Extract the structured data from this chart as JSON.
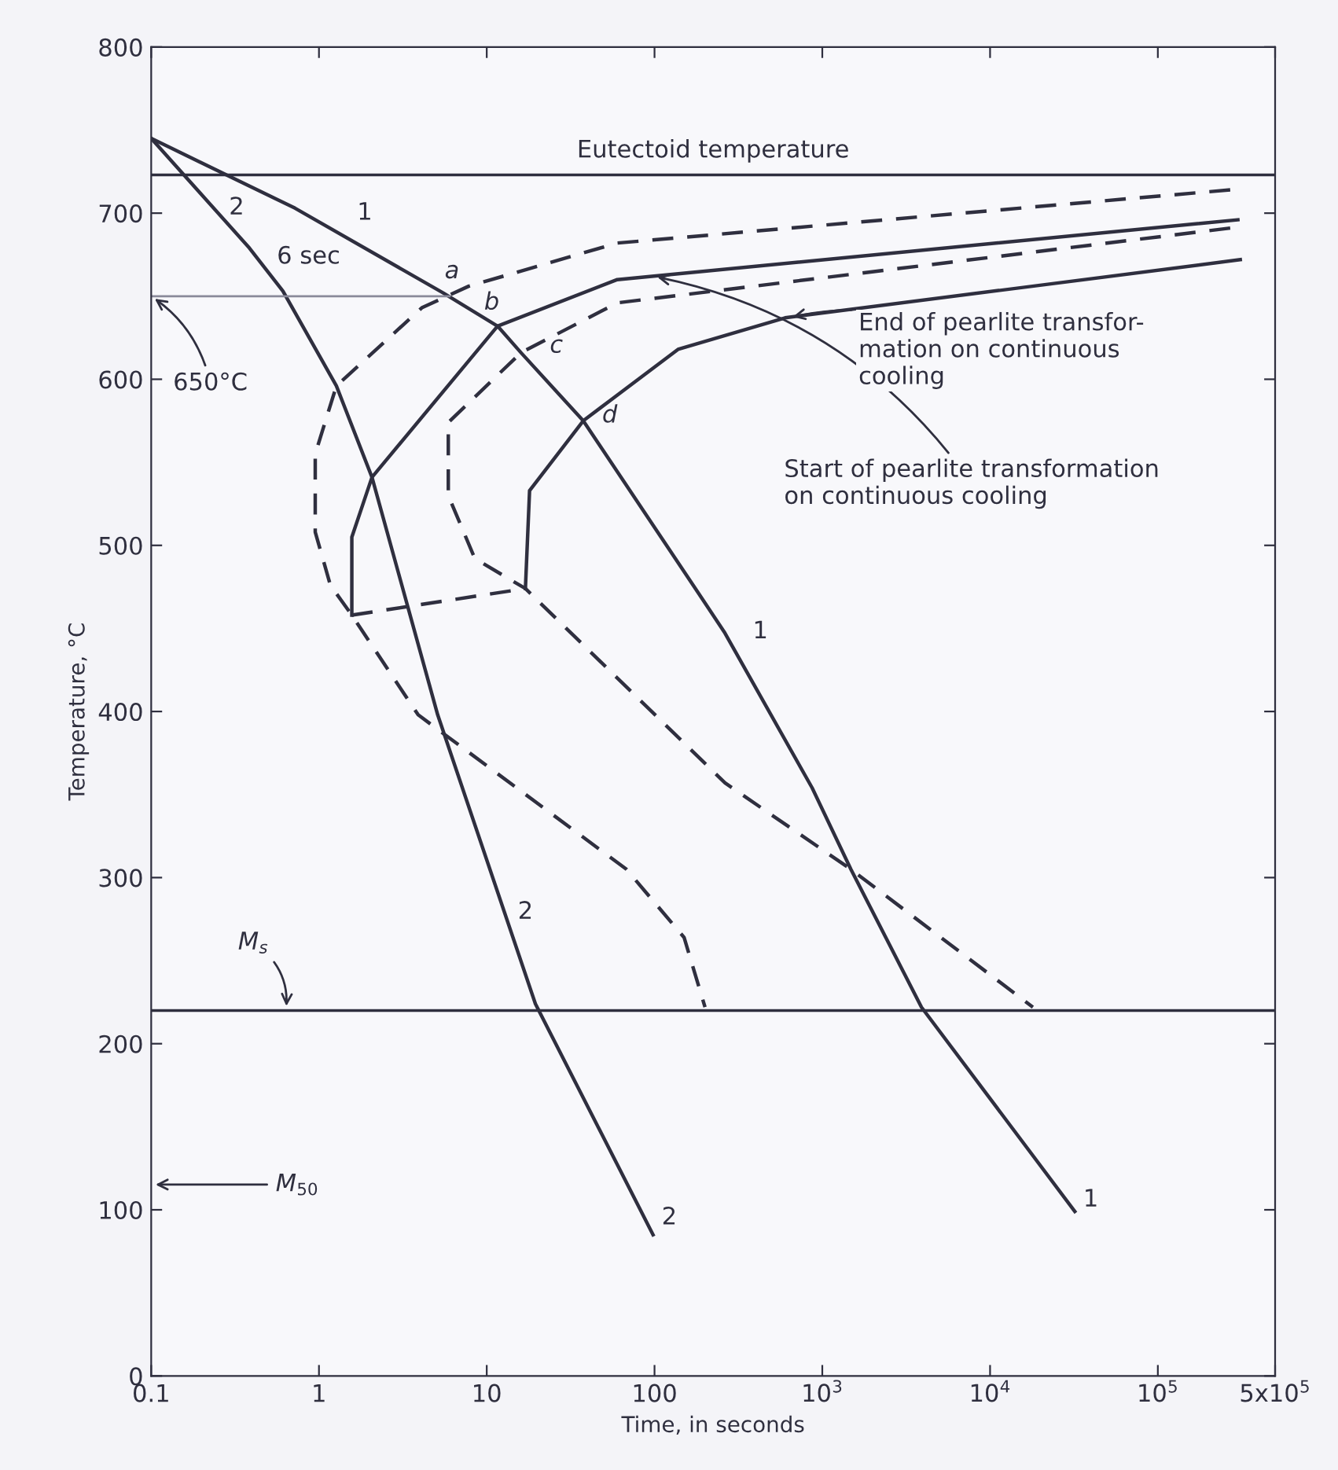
{
  "chart_data": {
    "type": "line",
    "xlabel": "Time, in seconds",
    "ylabel": "Temperature, °C",
    "log": "x",
    "xlim": [
      0.1,
      500000
    ],
    "ylim": [
      0,
      800
    ],
    "xticks": [
      0.1,
      1,
      10,
      100,
      {
        "value": 1000,
        "label": "10$^{3}$"
      },
      {
        "value": 10000,
        "label": "10$^{4}$"
      },
      {
        "value": 100000,
        "label": "10$^{5}$"
      },
      {
        "value": 500000,
        "label": "5x10$^{5}$"
      }
    ],
    "yticks": [
      0,
      100,
      200,
      300,
      400,
      500,
      600,
      700,
      800
    ],
    "grid": false,
    "marker": "none",
    "series": [
      {
        "color": "#2f2f3f",
        "line_style": "solid",
        "x": [
          0.1,
          0.72,
          5.5,
          11.6,
          16,
          37.6,
          170,
          260,
          870,
          1480,
          3900,
          32000
        ],
        "values": [
          745,
          703,
          652,
          632,
          616,
          575,
          476,
          448,
          354,
          305,
          222,
          99
        ]
      },
      {
        "color": "#2f2f3f",
        "line_style": "solid",
        "x": [
          0.1,
          0.385,
          0.61,
          1.27,
          2.07,
          5.1,
          19.5,
          98
        ],
        "values": [
          745,
          679,
          653,
          596,
          541,
          398,
          224,
          85
        ]
      },
      {
        "color": "#2f2f3f",
        "line_style": "dashed",
        "x": [
          270000,
          60,
          7.8,
          4.1,
          1.27,
          0.95,
          0.95,
          1.17,
          1.57,
          3.9,
          68,
          150,
          200
        ],
        "values": [
          714,
          682,
          656,
          643,
          596,
          555,
          508,
          476,
          458,
          398,
          305,
          264,
          222
        ]
      },
      {
        "color": "#2f2f3f",
        "line_style": "solid",
        "x": [
          300000,
          60,
          11.6,
          2.07,
          1.57,
          1.57
        ],
        "values": [
          696,
          660,
          632,
          541,
          505,
          458
        ]
      },
      {
        "color": "#2f2f3f",
        "line_style": "dashed",
        "x": [
          270000,
          60,
          16,
          5.9,
          5.9,
          8.5,
          17,
          263,
          1480,
          18000
        ],
        "values": [
          691,
          646,
          616,
          574,
          530,
          492,
          474,
          357,
          305,
          222
        ]
      },
      {
        "color": "#2f2f3f",
        "line_style": "solid",
        "x": [
          310000,
          600,
          138,
          37.6,
          18,
          17
        ],
        "values": [
          672,
          637,
          618,
          575,
          533,
          474
        ]
      },
      {
        "color": "#2f2f3f",
        "line_style": "dashed",
        "x": [
          1.57,
          17
        ],
        "values": [
          458,
          474
        ]
      },
      {
        "color": "#8a8a9a",
        "line_style": "solid",
        "x": [
          0.1,
          6
        ],
        "values": [
          650,
          650
        ]
      }
    ],
    "ref_lines": [
      {
        "axis": "y",
        "value": 723,
        "label": "Eutectoid temperature",
        "color": "#2f2f3f"
      },
      {
        "axis": "y",
        "value": 220,
        "label": "M$_{s}$",
        "color": "#2f2f3f"
      }
    ],
    "annotations": [
      {
        "text": "650°C",
        "x": 0.1,
        "y": 650
      },
      "6 sec",
      "M$_{50}$",
      {
        "text": "Start of pearlite transformation\non continuous cooling",
        "x": 98,
        "y": 662
      },
      {
        "text": "End of pearlite transfor-\nmation on continuous\ncooling",
        "x": 630,
        "y": 637
      },
      "a",
      "b",
      "c",
      "d",
      "2",
      "1",
      "1",
      "2",
      "2",
      "1"
    ]
  }
}
